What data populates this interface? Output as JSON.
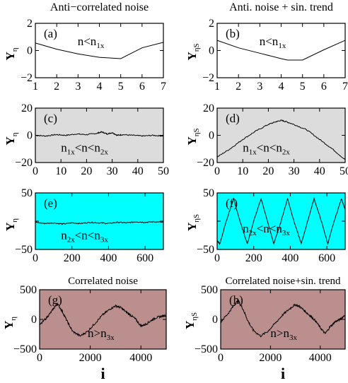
{
  "colors": {
    "bg_white": "#ffffff",
    "bg_gray": "#dcdcdc",
    "bg_cyan": "#00ffff",
    "bg_brown": "#bc8f8f",
    "line": "#000000"
  },
  "chart_data": [
    {
      "id": "a",
      "type": "line",
      "top_title": "Anti−correlated noise",
      "panel_label": "(a)",
      "regime": {
        "n": "n",
        "op1": "<",
        "n1": "n",
        "sub1": "1x",
        "op2": "",
        "n2": "",
        "sub2": ""
      },
      "ylabel": {
        "main": "Y",
        "sub": "η"
      },
      "xlim": [
        1,
        7
      ],
      "ylim": [
        -2,
        2
      ],
      "xticks": [
        "1",
        "2",
        "3",
        "4",
        "5",
        "6",
        "7"
      ],
      "yticks": [
        "2",
        "0",
        "−2"
      ],
      "background": "white",
      "x": [
        1,
        2,
        3,
        4,
        5,
        6,
        7
      ],
      "y": [
        0.55,
        0.1,
        -0.25,
        -0.5,
        -0.6,
        0.2,
        0.6
      ]
    },
    {
      "id": "b",
      "type": "line",
      "top_title": "Anti. noise + sin. trend",
      "panel_label": "(b)",
      "regime": {
        "n": "n",
        "op1": "<",
        "n1": "n",
        "sub1": "1x",
        "op2": "",
        "n2": "",
        "sub2": ""
      },
      "ylabel": {
        "main": "Y",
        "sub": "ηS"
      },
      "xlim": [
        1,
        7
      ],
      "ylim": [
        -2,
        2
      ],
      "xticks": [
        "1",
        "2",
        "3",
        "4",
        "5",
        "6",
        "7"
      ],
      "yticks": [
        "2",
        "0",
        "−2"
      ],
      "background": "white",
      "x": [
        1,
        2,
        3,
        4,
        4.3,
        5,
        6,
        7
      ],
      "y": [
        0.75,
        0.2,
        -0.2,
        -0.6,
        -0.7,
        -0.7,
        0.05,
        0.75
      ]
    },
    {
      "id": "c",
      "type": "line",
      "top_title": "",
      "panel_label": "(c)",
      "regime": {
        "n": "n",
        "op1": "<",
        "n1": "n",
        "sub1": "1x",
        "op2": "<",
        "n2": "n",
        "sub2": "2x",
        "lead_sub": "1x"
      },
      "ylabel": {
        "main": "Y",
        "sub": "η"
      },
      "xlim": [
        0,
        50
      ],
      "ylim": [
        -20,
        20
      ],
      "xticks": [
        "0",
        "10",
        "20",
        "30",
        "40",
        "50"
      ],
      "yticks": [
        "20",
        "0",
        "−20"
      ],
      "background": "gray",
      "x": [
        0,
        4,
        8,
        12,
        16,
        20,
        24,
        26,
        28,
        30,
        32,
        34,
        38,
        42,
        46,
        50
      ],
      "y": [
        0,
        -0.5,
        0.5,
        0,
        1,
        0.5,
        1.5,
        2.5,
        1,
        2,
        0,
        0.5,
        0,
        -0.5,
        0,
        -0.5
      ]
    },
    {
      "id": "d",
      "type": "line",
      "top_title": "",
      "panel_label": "(d)",
      "regime": {
        "n": "n",
        "op1": "<",
        "n1": "n",
        "sub1": "1x",
        "op2": "<",
        "n2": "n",
        "sub2": "2x",
        "lead_sub": "1x"
      },
      "ylabel": {
        "main": "Y",
        "sub": "ηS"
      },
      "xlim": [
        0,
        50
      ],
      "ylim": [
        -20,
        20
      ],
      "xticks": [
        "0",
        "10",
        "20",
        "30",
        "40",
        "50"
      ],
      "yticks": [
        "20",
        "0",
        "−20"
      ],
      "background": "gray",
      "x": [
        0,
        5,
        10,
        15,
        20,
        23,
        25,
        27,
        30,
        35,
        40,
        45,
        50
      ],
      "y": [
        -16,
        -10,
        -3,
        3,
        8,
        10,
        11,
        10,
        8,
        4,
        -3,
        -10,
        -18
      ]
    },
    {
      "id": "e",
      "type": "line",
      "top_title": "",
      "panel_label": "(e)",
      "regime": {
        "n": "n",
        "op1": "<",
        "n1": "n",
        "sub1": "2x",
        "op2": "<",
        "n2": "n",
        "sub2": "3x",
        "lead_sub": "2x"
      },
      "ylabel": {
        "main": "Y",
        "sub": "η"
      },
      "xlim": [
        0,
        700
      ],
      "ylim": [
        -50,
        50
      ],
      "xticks": [
        "0",
        "200",
        "400",
        "600"
      ],
      "yticks": [
        "50",
        "",
        "−50"
      ],
      "background": "cyan",
      "x": [
        0,
        50,
        100,
        150,
        200,
        250,
        300,
        350,
        400,
        450,
        500,
        550,
        600,
        650,
        700
      ],
      "y": [
        -2,
        -4,
        -3,
        -5,
        -3,
        -4,
        -2,
        -3,
        -4,
        -2,
        -3,
        -1,
        -2,
        -1,
        -2
      ]
    },
    {
      "id": "f",
      "type": "line",
      "top_title": "",
      "panel_label": "(f)",
      "regime": {
        "n": "n",
        "op1": "<",
        "n1": "n",
        "sub1": "2x",
        "op2": "<",
        "n2": "n",
        "sub2": "3x",
        "lead_sub": "2x"
      },
      "ylabel": {
        "main": "Y",
        "sub": "ηS"
      },
      "xlim": [
        0,
        700
      ],
      "ylim": [
        -50,
        50
      ],
      "xticks": [
        "0",
        "200",
        "400",
        "600"
      ],
      "yticks": [
        "50",
        "",
        "−50"
      ],
      "background": "cyan",
      "x": [
        0,
        15,
        50,
        90,
        125,
        165,
        200,
        240,
        275,
        310,
        350,
        385,
        420,
        460,
        495,
        530,
        570,
        605,
        640,
        680,
        700
      ],
      "y": [
        -35,
        -40,
        0,
        40,
        0,
        -40,
        0,
        40,
        0,
        -40,
        0,
        40,
        0,
        -40,
        0,
        40,
        0,
        -40,
        0,
        40,
        20
      ]
    },
    {
      "id": "g",
      "type": "line",
      "top_title": "Correlated noise",
      "panel_label": "(g)",
      "regime": {
        "n": "n",
        "op1": ">",
        "n1": "n",
        "sub1": "3x",
        "op2": "",
        "n2": "",
        "sub2": ""
      },
      "ylabel": {
        "main": "Y",
        "sub": "η"
      },
      "xlabel": "i",
      "xlim": [
        0,
        5000
      ],
      "ylim": [
        -500,
        500
      ],
      "xticks": [
        "0",
        "2000",
        "4000"
      ],
      "yticks": [
        "500",
        "0",
        "−500"
      ],
      "background": "brown",
      "x": [
        0,
        300,
        500,
        700,
        900,
        1100,
        1300,
        1600,
        1900,
        2200,
        2500,
        2800,
        3000,
        3200,
        3400,
        3600,
        3800,
        4000,
        4200,
        4400,
        4600,
        4800,
        5000
      ],
      "y": [
        -100,
        40,
        150,
        270,
        130,
        -40,
        -200,
        -280,
        -200,
        -60,
        80,
        180,
        230,
        200,
        130,
        70,
        0,
        -110,
        -80,
        -20,
        30,
        50,
        70
      ]
    },
    {
      "id": "h",
      "type": "line",
      "top_title": "Correlated noise+sin. trend",
      "panel_label": "(h)",
      "regime": {
        "n": "n",
        "op1": ">",
        "n1": "n",
        "sub1": "3x",
        "op2": "",
        "n2": "",
        "sub2": ""
      },
      "ylabel": {
        "main": "Y",
        "sub": "ηS"
      },
      "xlabel": "i",
      "xlim": [
        0,
        5000
      ],
      "ylim": [
        -500,
        500
      ],
      "xticks": [
        "0",
        "2000",
        "4000"
      ],
      "yticks": [
        "500",
        "0",
        "−500"
      ],
      "background": "brown",
      "x": [
        0,
        300,
        500,
        700,
        900,
        1100,
        1300,
        1600,
        1900,
        2200,
        2500,
        2800,
        3000,
        3200,
        3400,
        3600,
        3800,
        4000,
        4200,
        4400,
        4600,
        4800,
        5000
      ],
      "y": [
        -40,
        100,
        220,
        320,
        170,
        -30,
        -180,
        -280,
        -200,
        -60,
        80,
        190,
        250,
        210,
        130,
        60,
        -20,
        -140,
        -240,
        -120,
        -40,
        0,
        80
      ]
    }
  ]
}
